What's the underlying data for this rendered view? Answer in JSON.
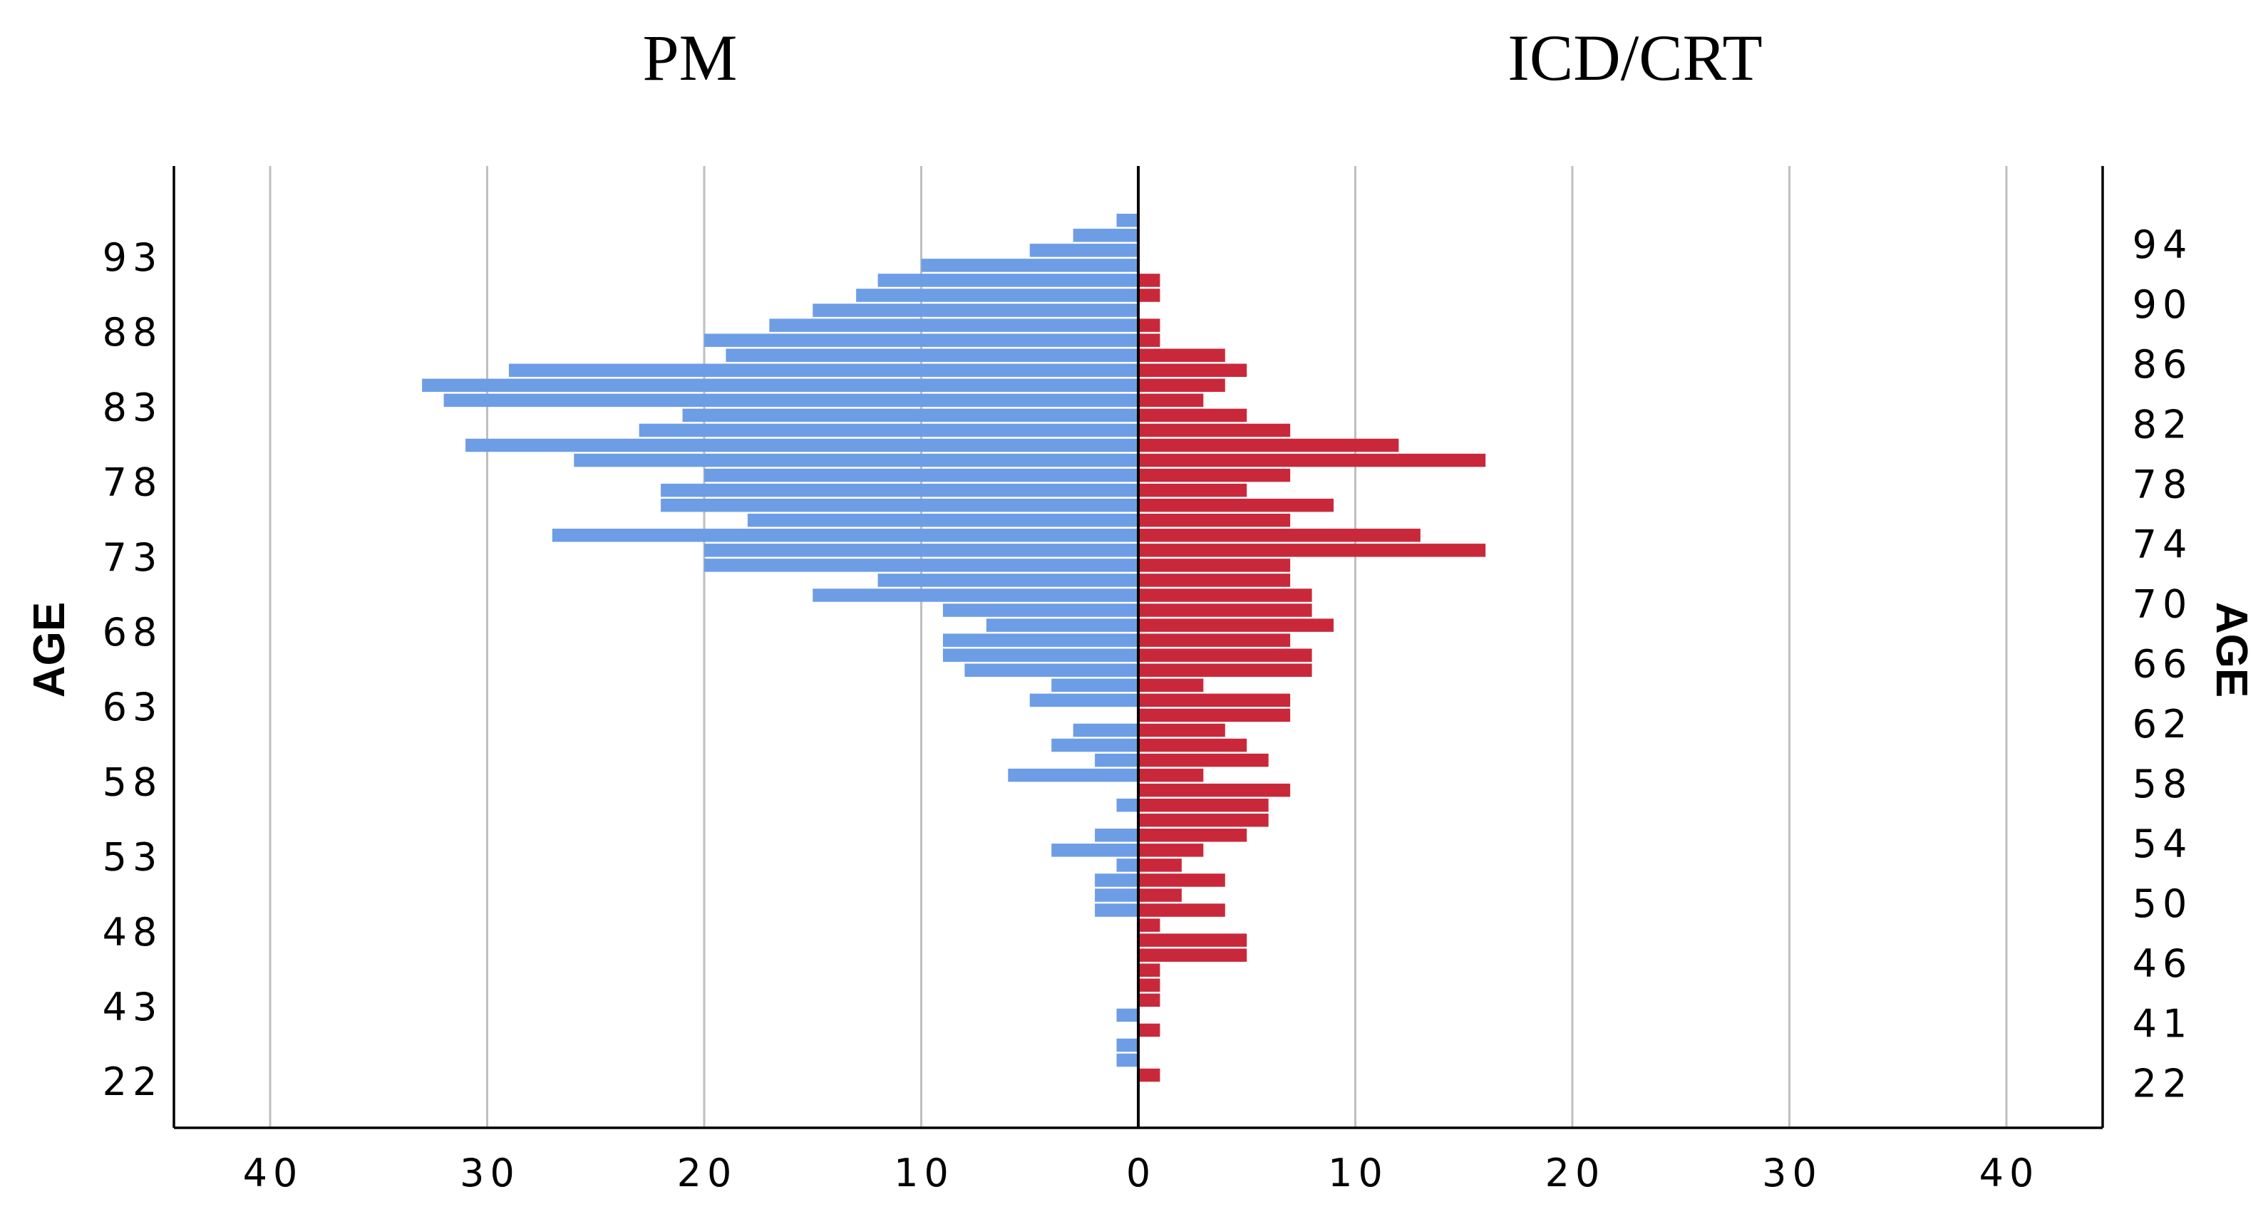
{
  "chart_data": {
    "type": "bar",
    "orientation": "horizontal-butterfly",
    "titles": {
      "left": "PM",
      "right": "ICD/CRT"
    },
    "ylabel_left": "AGE",
    "ylabel_right": "AGE",
    "xlim": [
      -45,
      45
    ],
    "x_ticks": [
      40,
      30,
      20,
      10,
      0,
      10,
      20,
      30,
      40
    ],
    "grid": "vertical",
    "colors": {
      "PM": "#6d9de4",
      "ICD/CRT": "#c9283b",
      "grid": "#bfbfbf",
      "axis": "#000000"
    },
    "left_age_labels": [
      "93",
      "88",
      "83",
      "78",
      "73",
      "68",
      "63",
      "58",
      "53",
      "48",
      "43",
      "22"
    ],
    "right_age_labels": [
      "94",
      "90",
      "86",
      "82",
      "78",
      "74",
      "70",
      "66",
      "62",
      "58",
      "54",
      "50",
      "46",
      "41",
      "22"
    ],
    "series": [
      {
        "name": "PM",
        "side": "left",
        "values": [
          1,
          3,
          5,
          10,
          12,
          13,
          15,
          17,
          20,
          19,
          29,
          33,
          32,
          21,
          23,
          31,
          26,
          20,
          22,
          22,
          18,
          27,
          20,
          20,
          12,
          15,
          9,
          7,
          9,
          9,
          8,
          4,
          5,
          0,
          3,
          4,
          2,
          6,
          0,
          1,
          0,
          2,
          4,
          1,
          2,
          2,
          2,
          0,
          0,
          0,
          0,
          0,
          0,
          1,
          0,
          1,
          1,
          0
        ]
      },
      {
        "name": "ICD/CRT",
        "side": "right",
        "values": [
          0,
          0,
          0,
          0,
          1,
          1,
          0,
          1,
          1,
          4,
          5,
          4,
          3,
          5,
          7,
          12,
          16,
          7,
          5,
          9,
          7,
          13,
          16,
          7,
          7,
          8,
          8,
          9,
          7,
          8,
          8,
          3,
          7,
          7,
          4,
          5,
          6,
          3,
          7,
          6,
          6,
          5,
          3,
          2,
          4,
          2,
          4,
          1,
          5,
          5,
          1,
          1,
          1,
          0,
          1,
          0,
          0,
          1
        ]
      }
    ]
  }
}
